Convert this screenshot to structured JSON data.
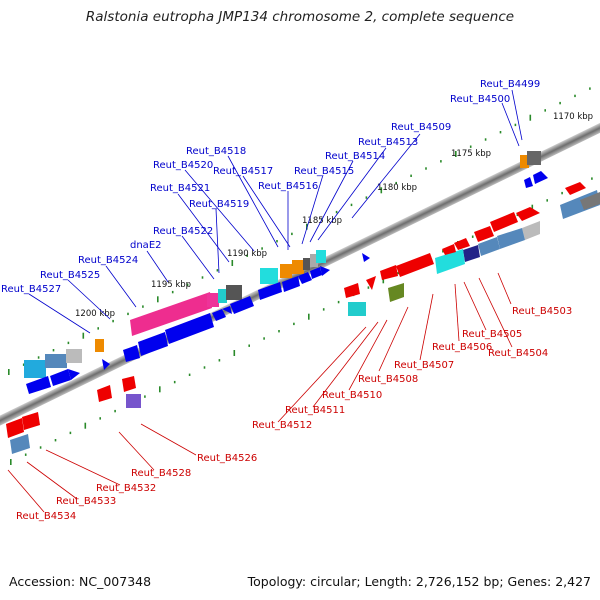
{
  "title": "Ralstonia eutropha JMP134 chromosome 2, complete sequence",
  "footer": {
    "accession": "Accession: NC_007348",
    "summary": "Topology: circular; Length: 2,726,152 bp; Genes: 2,427"
  },
  "colors": {
    "forward_label": "#0000cc",
    "reverse_label": "#cc0000",
    "backbone": "#7f7f7f",
    "tick": "#2a8a2a"
  },
  "scale_labels": [
    {
      "text": "1170 kbp",
      "kbp": 1170
    },
    {
      "text": "1175 kbp",
      "kbp": 1175
    },
    {
      "text": "1180 kbp",
      "kbp": 1180
    },
    {
      "text": "1185 kbp",
      "kbp": 1185
    },
    {
      "text": "1190 kbp",
      "kbp": 1190
    },
    {
      "text": "1195 kbp",
      "kbp": 1195
    },
    {
      "text": "1200 kbp",
      "kbp": 1200
    }
  ],
  "forward_labels": [
    "Reut_B4499",
    "Reut_B4500",
    "Reut_B4509",
    "Reut_B4513",
    "Reut_B4518",
    "Reut_B4514",
    "Reut_B4520",
    "Reut_B4515",
    "Reut_B4517",
    "Reut_B4521",
    "Reut_B4516",
    "Reut_B4519",
    "Reut_B4522",
    "dnaE2",
    "Reut_B4524",
    "Reut_B4525",
    "Reut_B4527"
  ],
  "reverse_labels": [
    "Reut_B4503",
    "Reut_B4505",
    "Reut_B4506",
    "Reut_B4504",
    "Reut_B4507",
    "Reut_B4508",
    "Reut_B4510",
    "Reut_B4511",
    "Reut_B4512",
    "Reut_B4526",
    "Reut_B4528",
    "Reut_B4532",
    "Reut_B4533",
    "Reut_B4534"
  ]
}
